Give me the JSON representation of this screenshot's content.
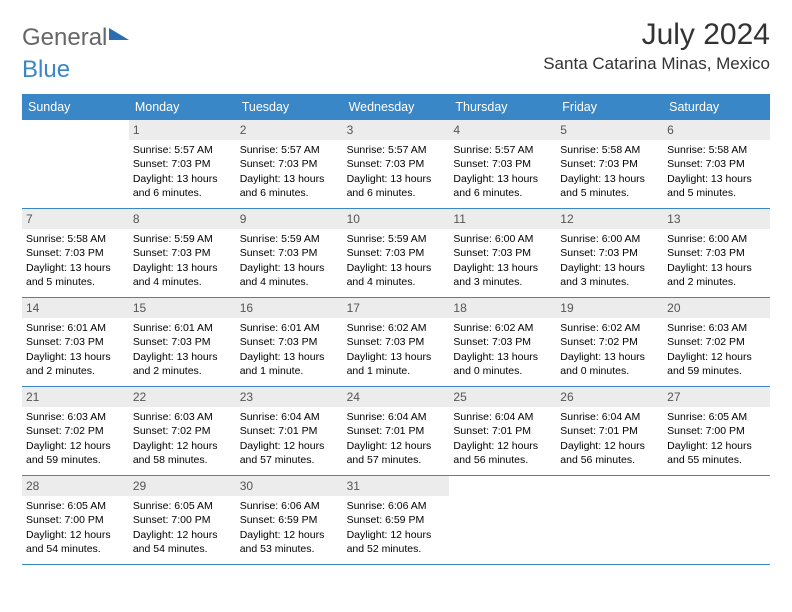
{
  "logo": {
    "part1": "General",
    "part2": "Blue"
  },
  "title": "July 2024",
  "location": "Santa Catarina Minas, Mexico",
  "colors": {
    "header_bg": "#3a87c8",
    "header_text": "#ffffff",
    "daynum_bg": "#ececec",
    "daynum_text": "#555555",
    "rule": "#3a87c8",
    "body_text": "#000000",
    "page_bg": "#ffffff"
  },
  "weekdays": [
    "Sunday",
    "Monday",
    "Tuesday",
    "Wednesday",
    "Thursday",
    "Friday",
    "Saturday"
  ],
  "weeks": [
    [
      null,
      {
        "n": "1",
        "sr": "Sunrise: 5:57 AM",
        "ss": "Sunset: 7:03 PM",
        "dl": "Daylight: 13 hours and 6 minutes."
      },
      {
        "n": "2",
        "sr": "Sunrise: 5:57 AM",
        "ss": "Sunset: 7:03 PM",
        "dl": "Daylight: 13 hours and 6 minutes."
      },
      {
        "n": "3",
        "sr": "Sunrise: 5:57 AM",
        "ss": "Sunset: 7:03 PM",
        "dl": "Daylight: 13 hours and 6 minutes."
      },
      {
        "n": "4",
        "sr": "Sunrise: 5:57 AM",
        "ss": "Sunset: 7:03 PM",
        "dl": "Daylight: 13 hours and 6 minutes."
      },
      {
        "n": "5",
        "sr": "Sunrise: 5:58 AM",
        "ss": "Sunset: 7:03 PM",
        "dl": "Daylight: 13 hours and 5 minutes."
      },
      {
        "n": "6",
        "sr": "Sunrise: 5:58 AM",
        "ss": "Sunset: 7:03 PM",
        "dl": "Daylight: 13 hours and 5 minutes."
      }
    ],
    [
      {
        "n": "7",
        "sr": "Sunrise: 5:58 AM",
        "ss": "Sunset: 7:03 PM",
        "dl": "Daylight: 13 hours and 5 minutes."
      },
      {
        "n": "8",
        "sr": "Sunrise: 5:59 AM",
        "ss": "Sunset: 7:03 PM",
        "dl": "Daylight: 13 hours and 4 minutes."
      },
      {
        "n": "9",
        "sr": "Sunrise: 5:59 AM",
        "ss": "Sunset: 7:03 PM",
        "dl": "Daylight: 13 hours and 4 minutes."
      },
      {
        "n": "10",
        "sr": "Sunrise: 5:59 AM",
        "ss": "Sunset: 7:03 PM",
        "dl": "Daylight: 13 hours and 4 minutes."
      },
      {
        "n": "11",
        "sr": "Sunrise: 6:00 AM",
        "ss": "Sunset: 7:03 PM",
        "dl": "Daylight: 13 hours and 3 minutes."
      },
      {
        "n": "12",
        "sr": "Sunrise: 6:00 AM",
        "ss": "Sunset: 7:03 PM",
        "dl": "Daylight: 13 hours and 3 minutes."
      },
      {
        "n": "13",
        "sr": "Sunrise: 6:00 AM",
        "ss": "Sunset: 7:03 PM",
        "dl": "Daylight: 13 hours and 2 minutes."
      }
    ],
    [
      {
        "n": "14",
        "sr": "Sunrise: 6:01 AM",
        "ss": "Sunset: 7:03 PM",
        "dl": "Daylight: 13 hours and 2 minutes."
      },
      {
        "n": "15",
        "sr": "Sunrise: 6:01 AM",
        "ss": "Sunset: 7:03 PM",
        "dl": "Daylight: 13 hours and 2 minutes."
      },
      {
        "n": "16",
        "sr": "Sunrise: 6:01 AM",
        "ss": "Sunset: 7:03 PM",
        "dl": "Daylight: 13 hours and 1 minute."
      },
      {
        "n": "17",
        "sr": "Sunrise: 6:02 AM",
        "ss": "Sunset: 7:03 PM",
        "dl": "Daylight: 13 hours and 1 minute."
      },
      {
        "n": "18",
        "sr": "Sunrise: 6:02 AM",
        "ss": "Sunset: 7:03 PM",
        "dl": "Daylight: 13 hours and 0 minutes."
      },
      {
        "n": "19",
        "sr": "Sunrise: 6:02 AM",
        "ss": "Sunset: 7:02 PM",
        "dl": "Daylight: 13 hours and 0 minutes."
      },
      {
        "n": "20",
        "sr": "Sunrise: 6:03 AM",
        "ss": "Sunset: 7:02 PM",
        "dl": "Daylight: 12 hours and 59 minutes."
      }
    ],
    [
      {
        "n": "21",
        "sr": "Sunrise: 6:03 AM",
        "ss": "Sunset: 7:02 PM",
        "dl": "Daylight: 12 hours and 59 minutes."
      },
      {
        "n": "22",
        "sr": "Sunrise: 6:03 AM",
        "ss": "Sunset: 7:02 PM",
        "dl": "Daylight: 12 hours and 58 minutes."
      },
      {
        "n": "23",
        "sr": "Sunrise: 6:04 AM",
        "ss": "Sunset: 7:01 PM",
        "dl": "Daylight: 12 hours and 57 minutes."
      },
      {
        "n": "24",
        "sr": "Sunrise: 6:04 AM",
        "ss": "Sunset: 7:01 PM",
        "dl": "Daylight: 12 hours and 57 minutes."
      },
      {
        "n": "25",
        "sr": "Sunrise: 6:04 AM",
        "ss": "Sunset: 7:01 PM",
        "dl": "Daylight: 12 hours and 56 minutes."
      },
      {
        "n": "26",
        "sr": "Sunrise: 6:04 AM",
        "ss": "Sunset: 7:01 PM",
        "dl": "Daylight: 12 hours and 56 minutes."
      },
      {
        "n": "27",
        "sr": "Sunrise: 6:05 AM",
        "ss": "Sunset: 7:00 PM",
        "dl": "Daylight: 12 hours and 55 minutes."
      }
    ],
    [
      {
        "n": "28",
        "sr": "Sunrise: 6:05 AM",
        "ss": "Sunset: 7:00 PM",
        "dl": "Daylight: 12 hours and 54 minutes."
      },
      {
        "n": "29",
        "sr": "Sunrise: 6:05 AM",
        "ss": "Sunset: 7:00 PM",
        "dl": "Daylight: 12 hours and 54 minutes."
      },
      {
        "n": "30",
        "sr": "Sunrise: 6:06 AM",
        "ss": "Sunset: 6:59 PM",
        "dl": "Daylight: 12 hours and 53 minutes."
      },
      {
        "n": "31",
        "sr": "Sunrise: 6:06 AM",
        "ss": "Sunset: 6:59 PM",
        "dl": "Daylight: 12 hours and 52 minutes."
      },
      null,
      null,
      null
    ]
  ]
}
